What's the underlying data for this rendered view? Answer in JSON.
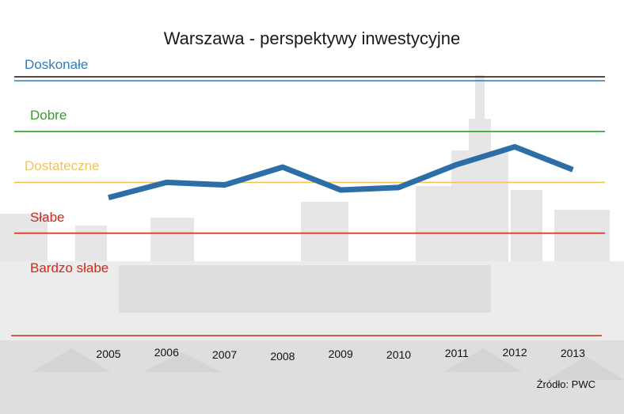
{
  "chart_data": {
    "type": "line",
    "title": "Warszawa - perspektywy inwestycyjne",
    "categories": [
      "2005",
      "2006",
      "2007",
      "2008",
      "2009",
      "2010",
      "2011",
      "2012",
      "2013"
    ],
    "values": [
      2.7,
      3.0,
      2.95,
      3.3,
      2.85,
      2.9,
      3.35,
      3.7,
      3.25
    ],
    "ylim": [
      0,
      5
    ],
    "y_levels": [
      {
        "label": "Doskonałe",
        "value": 5,
        "color": "#2e7eb8"
      },
      {
        "label": "Dobre",
        "value": 4,
        "color": "#3a9a35"
      },
      {
        "label": "Dostateczne",
        "value": 3,
        "color": "#f3c35a"
      },
      {
        "label": "Słabe",
        "value": 2,
        "color": "#cc2a1a"
      },
      {
        "label": "Bardzo słabe",
        "value": 1,
        "color": "#cc2a1a"
      }
    ],
    "line_color": "#2e6ea8",
    "grid": true
  },
  "source": "Źródło: PWC"
}
